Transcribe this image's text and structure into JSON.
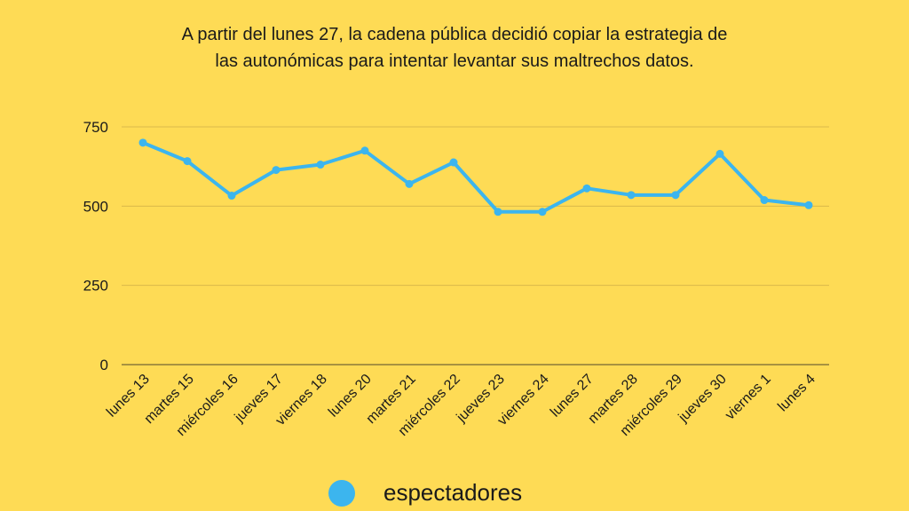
{
  "chart_data": {
    "type": "line",
    "title_lines": [
      "A partir del lunes 27, la cadena pública decidió copiar la estrategia de",
      "las autonómicas para intentar levantar sus maltrechos datos."
    ],
    "categories": [
      "lunes 13",
      "martes 15",
      "miércoles 16",
      "jueves 17",
      "viernes 18",
      "lunes 20",
      "martes 21",
      "miércoles 22",
      "jueves 23",
      "viernes 24",
      "lunes 27",
      "martes 28",
      "miércoles 29",
      "jueves 30",
      "viernes 1",
      "lunes 4"
    ],
    "series": [
      {
        "name": "espectadores",
        "color": "#3cb5ee",
        "values": [
          700,
          642,
          533,
          614,
          631,
          675,
          570,
          638,
          482,
          482,
          556,
          535,
          535,
          665,
          519,
          503
        ]
      }
    ],
    "ylim": [
      0,
      750
    ],
    "yticks": [
      "0",
      "250",
      "500",
      "750"
    ],
    "grid": true,
    "legend": "bottom",
    "background": "#fedb55"
  }
}
